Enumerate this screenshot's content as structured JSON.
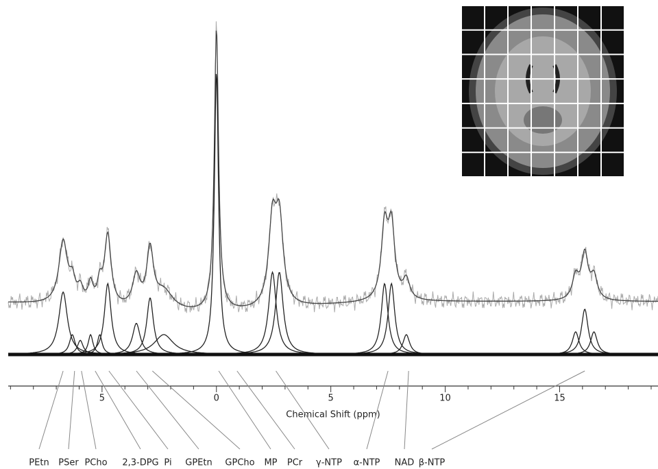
{
  "chart_data": {
    "type": "spectrum",
    "xlabel": "Chemical Shift (ppm)",
    "xlim": [
      9.1,
      -19.3
    ],
    "xticks": [
      5,
      0,
      {
        "value": -5,
        "label": "5"
      },
      {
        "value": -10,
        "label": "10"
      },
      {
        "value": -15,
        "label": "15"
      }
    ],
    "xminorticks": [
      9,
      8,
      7,
      6,
      4,
      3,
      2,
      1,
      -1,
      -2,
      -3,
      -4,
      -6,
      -7,
      -8,
      -9,
      -11,
      -12,
      -13,
      -14,
      -16,
      -17,
      -18,
      -19
    ],
    "components": [
      {
        "ppm": 6.7,
        "height": 22,
        "width": 0.45
      },
      {
        "ppm": 6.3,
        "height": 7,
        "width": 0.3
      },
      {
        "ppm": 5.95,
        "height": 5,
        "width": 0.3
      },
      {
        "ppm": 5.5,
        "height": 7,
        "width": 0.25
      },
      {
        "ppm": 5.1,
        "height": 7,
        "width": 0.25
      },
      {
        "ppm": 4.75,
        "height": 25,
        "width": 0.35
      },
      {
        "ppm": 3.5,
        "height": 11,
        "width": 0.4
      },
      {
        "ppm": 2.9,
        "height": 20,
        "width": 0.35
      },
      {
        "ppm": 2.3,
        "height": 7,
        "width": 1.0
      },
      {
        "ppm": 0,
        "height": 100,
        "width": 0.22
      },
      {
        "ppm": -2.45,
        "height": 29,
        "width": 0.4
      },
      {
        "ppm": -2.75,
        "height": 29,
        "width": 0.4
      },
      {
        "ppm": -7.35,
        "height": 25,
        "width": 0.35
      },
      {
        "ppm": -7.65,
        "height": 25,
        "width": 0.35
      },
      {
        "ppm": -8.3,
        "height": 7,
        "width": 0.35
      },
      {
        "ppm": -15.7,
        "height": 8,
        "width": 0.35
      },
      {
        "ppm": -16.1,
        "height": 16,
        "width": 0.35
      },
      {
        "ppm": -16.5,
        "height": 8,
        "width": 0.35
      }
    ],
    "metabolites": [
      {
        "label": "PEtn",
        "ppm": 6.7
      },
      {
        "label": "PSer",
        "ppm": 6.2
      },
      {
        "label": "PCho",
        "ppm": 5.9
      },
      {
        "label": "2,3-DPG",
        "ppm": 5.3
      },
      {
        "label": "Pi",
        "ppm": 4.7
      },
      {
        "label": "GPEtn",
        "ppm": 3.5
      },
      {
        "label": "GPCho",
        "ppm": 2.8
      },
      {
        "label": "MP",
        "ppm": -0.1
      },
      {
        "label": "PCr",
        "ppm": -0.9
      },
      {
        "label": "γ-NTP",
        "ppm": -2.6
      },
      {
        "label": "α-NTP",
        "ppm": -7.5
      },
      {
        "label": "NAD",
        "ppm": -8.4
      },
      {
        "label": "β-NTP",
        "ppm": -16.1
      }
    ]
  }
}
